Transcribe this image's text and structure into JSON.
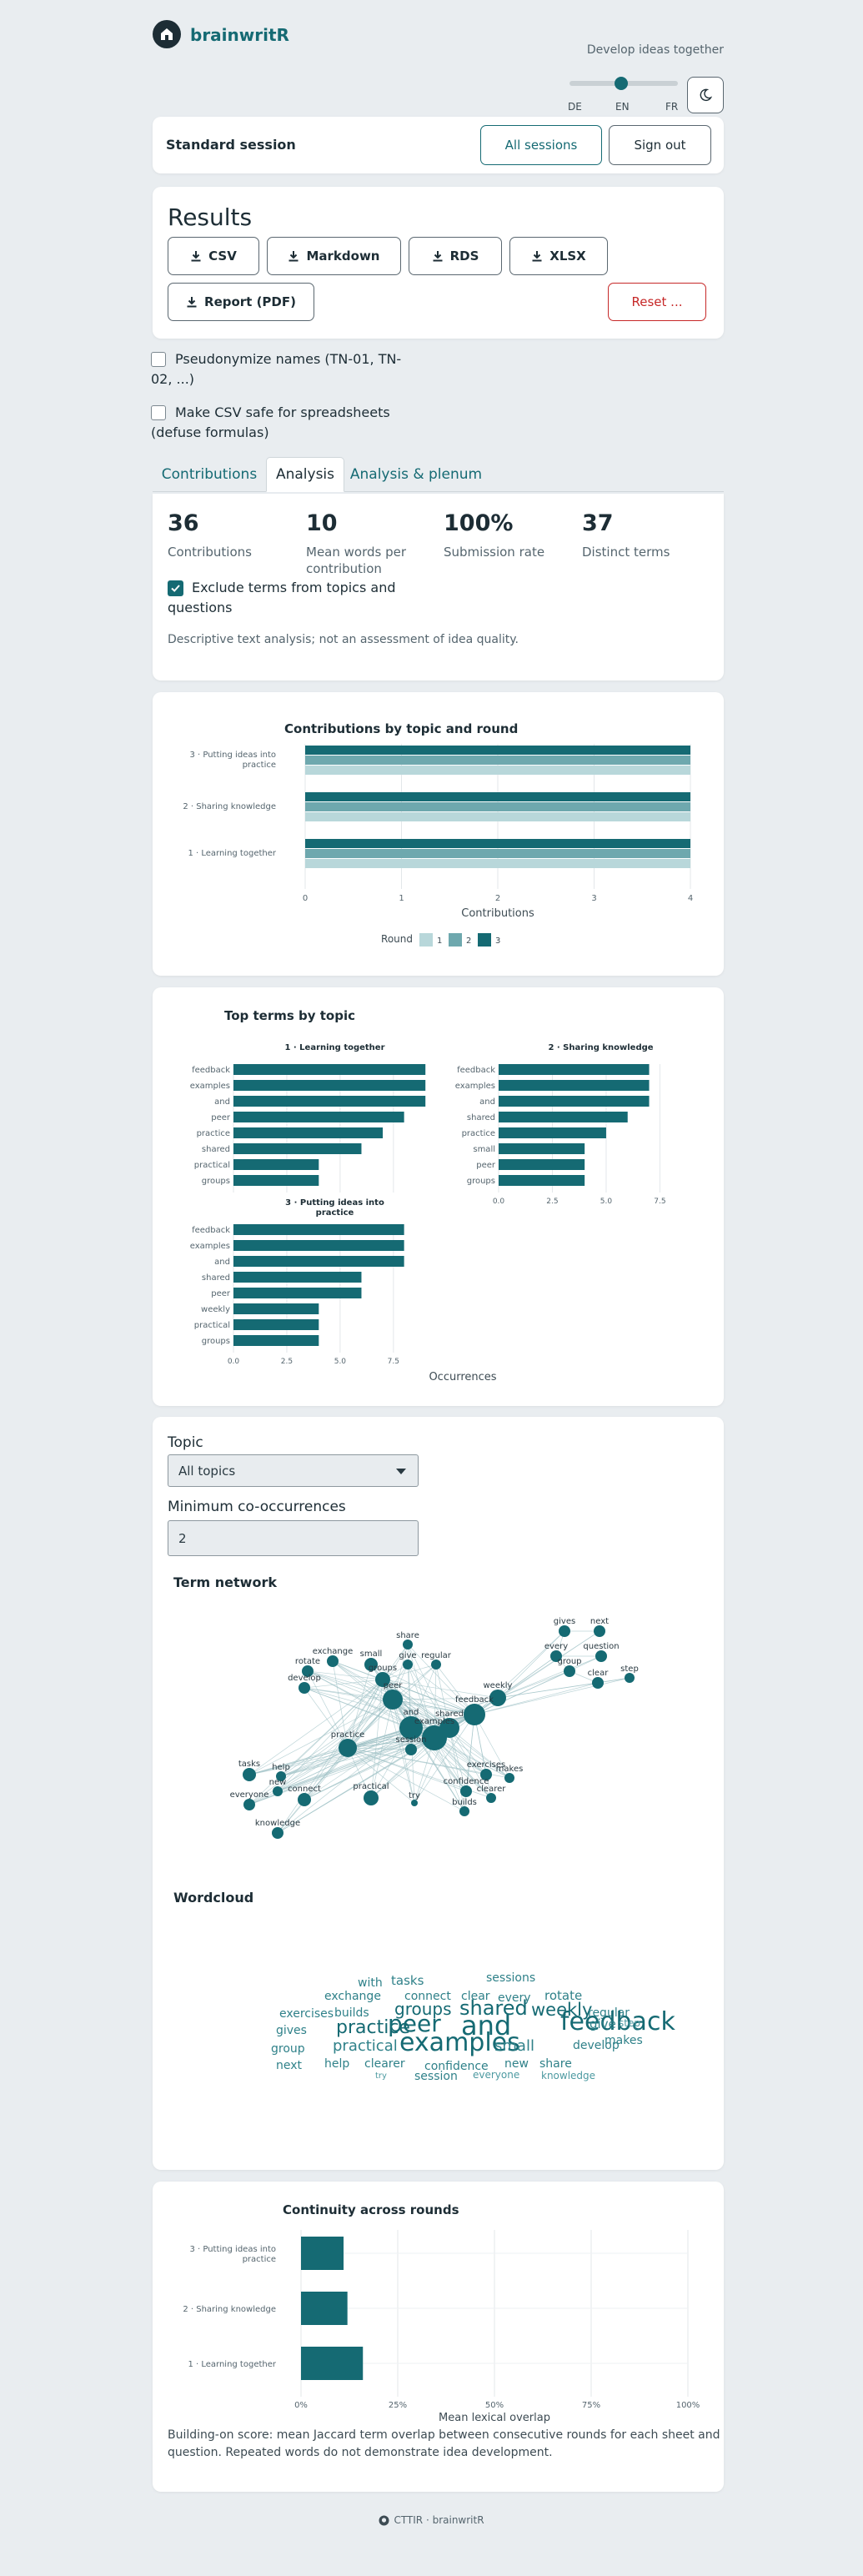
{
  "app": {
    "name": "brainwritR",
    "tagline": "Develop ideas together"
  },
  "languages": [
    "DE",
    "EN",
    "FR"
  ],
  "session": {
    "title": "Standard session",
    "all_sessions": "All sessions",
    "sign_out": "Sign out"
  },
  "results": {
    "heading": "Results",
    "exports": [
      "CSV",
      "Markdown",
      "RDS",
      "XLSX",
      "Report (PDF)"
    ],
    "reset": "Reset ..."
  },
  "options": {
    "pseudonymize_line1": "Pseudonymize names (TN-01, TN-",
    "pseudonymize_line2": "02, ...)",
    "csv_safe_line1": "Make CSV safe for spreadsheets",
    "csv_safe_line2": "(defuse formulas)"
  },
  "tabs": [
    "Contributions",
    "Analysis",
    "Analysis & plenum"
  ],
  "kpis": [
    {
      "value": "36",
      "label1": "Contributions",
      "label2": ""
    },
    {
      "value": "10",
      "label1": "Mean words per",
      "label2": "contribution"
    },
    {
      "value": "100%",
      "label1": "Submission rate",
      "label2": ""
    },
    {
      "value": "37",
      "label1": "Distinct terms",
      "label2": ""
    }
  ],
  "exclude_terms_line1": "Exclude terms from topics and",
  "exclude_terms_line2": "questions",
  "analysis_note": "Descriptive text analysis; not an assessment of idea quality.",
  "colors": {
    "accent": "#156a73",
    "round1": "#b8d7da",
    "round2": "#6ea8ae",
    "round3": "#156a73",
    "danger": "#c62828"
  },
  "chart_data": [
    {
      "type": "bar",
      "title": "Contributions by topic and round",
      "categories": [
        "3 · Putting ideas into practice",
        "2 · Sharing knowledge",
        "1 · Learning together"
      ],
      "cat_lines": [
        [
          "3 · Putting ideas into",
          "practice"
        ],
        [
          "2 · Sharing knowledge"
        ],
        [
          "1 · Learning together"
        ]
      ],
      "series": [
        {
          "name": "1",
          "values": [
            4,
            4,
            4
          ]
        },
        {
          "name": "2",
          "values": [
            4,
            4,
            4
          ]
        },
        {
          "name": "3",
          "values": [
            4,
            4,
            4
          ]
        }
      ],
      "xlabel": "Contributions",
      "xticks": [
        "0",
        "1",
        "2",
        "3",
        "4"
      ],
      "xlim": [
        0,
        4
      ],
      "legend_title": "Round",
      "legend": "bottom"
    },
    {
      "type": "bar",
      "title": "Top terms by topic",
      "xlabel": "Occurrences",
      "panels": [
        {
          "name": "1 · Learning together",
          "name_lines": [
            "1 · Learning together"
          ],
          "terms": [
            "feedback",
            "examples",
            "and",
            "peer",
            "practice",
            "shared",
            "practical",
            "groups"
          ],
          "values": [
            9,
            9,
            9,
            8,
            7,
            6,
            4,
            4
          ]
        },
        {
          "name": "2 · Sharing knowledge",
          "name_lines": [
            "2 · Sharing knowledge"
          ],
          "terms": [
            "feedback",
            "examples",
            "and",
            "shared",
            "practice",
            "small",
            "peer",
            "groups"
          ],
          "values": [
            7,
            7,
            7,
            6,
            5,
            4,
            4,
            4
          ]
        },
        {
          "name": "3 · Putting ideas into practice",
          "name_lines": [
            "3 · Putting ideas into",
            "practice"
          ],
          "terms": [
            "feedback",
            "examples",
            "and",
            "shared",
            "peer",
            "weekly",
            "practical",
            "groups"
          ],
          "values": [
            8,
            8,
            8,
            6,
            6,
            4,
            4,
            4
          ]
        }
      ],
      "xticks": [
        "0.0",
        "2.5",
        "5.0",
        "7.5"
      ],
      "xlim": [
        0,
        9.5
      ]
    },
    {
      "type": "bar",
      "title": "Continuity across rounds",
      "categories": [
        "3 · Putting ideas into practice",
        "2 · Sharing knowledge",
        "1 · Learning together"
      ],
      "cat_lines": [
        [
          "3 · Putting ideas into",
          "practice"
        ],
        [
          "2 · Sharing knowledge"
        ],
        [
          "1 · Learning together"
        ]
      ],
      "values": [
        0.11,
        0.12,
        0.16
      ],
      "xlabel": "Mean lexical overlap",
      "xticks": [
        "0%",
        "25%",
        "50%",
        "75%",
        "100%"
      ],
      "xlim": [
        0,
        1
      ]
    }
  ],
  "network": {
    "topic_label": "Topic",
    "topic_value": "All topics",
    "min_label": "Minimum co-occurrences",
    "min_value": "2",
    "title": "Term network",
    "nodes": [
      {
        "id": "share",
        "label": "share",
        "r": 6
      },
      {
        "id": "exchange",
        "label": "exchange",
        "r": 7
      },
      {
        "id": "small",
        "label": "small",
        "r": 8
      },
      {
        "id": "give",
        "label": "give",
        "r": 6
      },
      {
        "id": "regular",
        "label": "regular",
        "r": 6
      },
      {
        "id": "rotate",
        "label": "rotate",
        "r": 7
      },
      {
        "id": "develop",
        "label": "develop",
        "r": 7
      },
      {
        "id": "groups",
        "label": "groups",
        "r": 9
      },
      {
        "id": "peer",
        "label": "peer",
        "r": 12
      },
      {
        "id": "feedback",
        "label": "feedback",
        "r": 13
      },
      {
        "id": "weekly",
        "label": "weekly",
        "r": 10
      },
      {
        "id": "and",
        "label": "and",
        "r": 14
      },
      {
        "id": "examples",
        "label": "examples",
        "r": 15
      },
      {
        "id": "shared",
        "label": "shared",
        "r": 12
      },
      {
        "id": "practice",
        "label": "practice",
        "r": 11
      },
      {
        "id": "session",
        "label": "session",
        "r": 7
      },
      {
        "id": "tasks",
        "label": "tasks",
        "r": 8
      },
      {
        "id": "help",
        "label": "help",
        "r": 6
      },
      {
        "id": "new",
        "label": "new",
        "r": 6
      },
      {
        "id": "everyone",
        "label": "everyone",
        "r": 7
      },
      {
        "id": "connect",
        "label": "connect",
        "r": 8
      },
      {
        "id": "knowledge",
        "label": "knowledge",
        "r": 7
      },
      {
        "id": "practical",
        "label": "practical",
        "r": 9
      },
      {
        "id": "try",
        "label": "try",
        "r": 4
      },
      {
        "id": "exercises",
        "label": "exercises",
        "r": 7
      },
      {
        "id": "makes",
        "label": "makes",
        "r": 6
      },
      {
        "id": "confidence",
        "label": "confidence",
        "r": 7
      },
      {
        "id": "builds",
        "label": "builds",
        "r": 6
      },
      {
        "id": "clearer",
        "label": "clearer",
        "r": 6
      },
      {
        "id": "gives",
        "label": "gives",
        "r": 7
      },
      {
        "id": "next",
        "label": "next",
        "r": 7
      },
      {
        "id": "every",
        "label": "every",
        "r": 7
      },
      {
        "id": "question",
        "label": "question",
        "r": 7
      },
      {
        "id": "group",
        "label": "group",
        "r": 7
      },
      {
        "id": "clear",
        "label": "clear",
        "r": 7
      },
      {
        "id": "step",
        "label": "step",
        "r": 6
      }
    ]
  },
  "wordcloud": {
    "title": "Wordcloud",
    "words": [
      {
        "t": "with",
        "s": 14
      },
      {
        "t": "tasks",
        "s": 15
      },
      {
        "t": "sessions",
        "s": 14
      },
      {
        "t": "exchange",
        "s": 14
      },
      {
        "t": "connect",
        "s": 14
      },
      {
        "t": "clear",
        "s": 14
      },
      {
        "t": "every",
        "s": 14
      },
      {
        "t": "rotate",
        "s": 15
      },
      {
        "t": "exercises",
        "s": 14
      },
      {
        "t": "builds",
        "s": 14
      },
      {
        "t": "groups",
        "s": 20
      },
      {
        "t": "shared",
        "s": 24
      },
      {
        "t": "weekly",
        "s": 21
      },
      {
        "t": "regular",
        "s": 14
      },
      {
        "t": "gives",
        "s": 14
      },
      {
        "t": "practice",
        "s": 22
      },
      {
        "t": "peer",
        "s": 28
      },
      {
        "t": "and",
        "s": 32
      },
      {
        "t": "feedback",
        "s": 30
      },
      {
        "t": "give",
        "s": 15
      },
      {
        "t": "step",
        "s": 12
      },
      {
        "t": "makes",
        "s": 14
      },
      {
        "t": "group",
        "s": 14
      },
      {
        "t": "practical",
        "s": 18
      },
      {
        "t": "examples",
        "s": 30
      },
      {
        "t": "small",
        "s": 18
      },
      {
        "t": "develop",
        "s": 14
      },
      {
        "t": "next",
        "s": 14
      },
      {
        "t": "help",
        "s": 14
      },
      {
        "t": "clearer",
        "s": 14
      },
      {
        "t": "confidence",
        "s": 14
      },
      {
        "t": "new",
        "s": 14
      },
      {
        "t": "share",
        "s": 14
      },
      {
        "t": "try",
        "s": 10
      },
      {
        "t": "session",
        "s": 14
      },
      {
        "t": "everyone",
        "s": 12
      },
      {
        "t": "knowledge",
        "s": 12
      }
    ]
  },
  "continuity_note_line1": "Building-on score: mean Jaccard term overlap between consecutive rounds for each sheet and",
  "continuity_note_line2": "question. Repeated words do not demonstrate idea development.",
  "footer": "CTTIR · brainwritR"
}
